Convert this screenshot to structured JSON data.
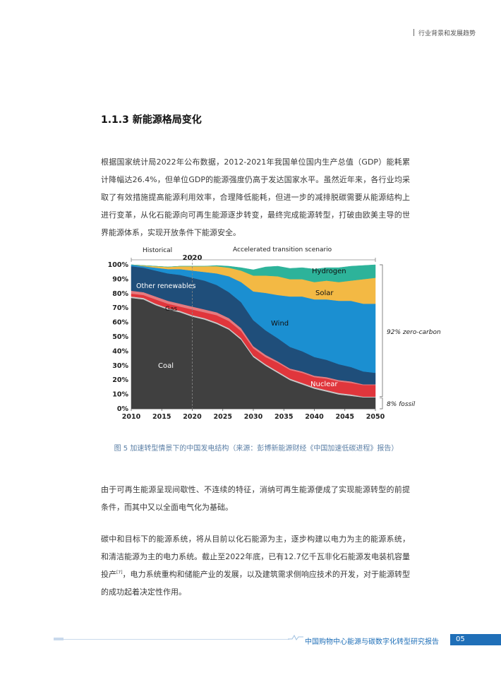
{
  "header": {
    "section_tag": "行业背景和发展趋势"
  },
  "section": {
    "title": "1.1.3  新能源格局变化"
  },
  "paragraphs": {
    "p1": "根据国家统计局2022年公布数据，2012-2021年我国单位国内生产总值（GDP）能耗累计降幅达26.4%，但单位GDP的能源强度仍高于发达国家水平。虽然近年来，各行业均采取了有效措施提高能源利用效率，合理降低能耗，但进一步的减排脱碳需要从能源结构上进行变革，从化石能源向可再生能源逐步转变，最终完成能源转型，打破由欧美主导的世界能源体系，实现开放条件下能源安全。",
    "p2": "由于可再生能源呈现间歇性、不连续的特征，消纳可再生能源便成了实现能源转型的前提条件，而其中又以全面电气化为基础。",
    "p3_before": "碳中和目标下的能源系统，将从目前以化石能源为主，逐步构建以电力为主的能源系统，和清洁能源为主的电力系统。截止至2022年底，已有12.7亿千瓦非化石能源发电装机容量投产",
    "p3_ref": "[7]",
    "p3_after": "，电力系统重构和储能产业的发展，以及建筑需求侧响应技术的开发，对于能源转型的成功起着决定性作用。"
  },
  "figure": {
    "caption": "图 5  加速转型情景下的中国发电结构（来源：彭博新能源财经《中国加速低碳进程》报告）"
  },
  "chart_data": {
    "type": "area",
    "stacked": true,
    "x": [
      2010,
      2012,
      2014,
      2016,
      2018,
      2020,
      2022,
      2024,
      2026,
      2028,
      2030,
      2032,
      2034,
      2036,
      2038,
      2040,
      2042,
      2044,
      2046,
      2048,
      2050
    ],
    "xticks": [
      "2010",
      "2015",
      "2020",
      "2025",
      "2030",
      "2035",
      "2040",
      "2045",
      "2050"
    ],
    "yticks": [
      "0%",
      "10%",
      "20%",
      "30%",
      "40%",
      "50%",
      "60%",
      "70%",
      "80%",
      "90%",
      "100%"
    ],
    "ylim": [
      0,
      100
    ],
    "series": [
      {
        "name": "Coal",
        "color": "#404040",
        "values": [
          77,
          76,
          72,
          69,
          67,
          64,
          62,
          59,
          55,
          48,
          36,
          30,
          25,
          20,
          17,
          14,
          12,
          10,
          9,
          8,
          8
        ]
      },
      {
        "name": "",
        "color": "#c9c9c9",
        "values": [
          1,
          1,
          1,
          1,
          1,
          1,
          1,
          1,
          1,
          1,
          1,
          1,
          1,
          1,
          1,
          1,
          1,
          1,
          1,
          0.5,
          0.5
        ]
      },
      {
        "name": "Nuclear",
        "color": "#e0363c",
        "values": [
          2,
          2,
          3,
          3,
          3,
          4,
          4,
          5,
          5,
          5,
          5,
          5,
          6,
          6,
          7,
          7,
          8,
          8,
          8,
          8,
          8
        ]
      },
      {
        "name": "Gas",
        "color": "#e57a7f",
        "values": [
          2,
          2,
          2,
          2,
          2,
          2,
          2,
          2,
          2,
          2,
          1.5,
          1.5,
          1,
          1,
          1,
          1,
          1,
          1,
          1,
          0.5,
          0.5
        ]
      },
      {
        "name": "Other renewables",
        "color": "#1f4e7a",
        "values": [
          17,
          17,
          18,
          19,
          20,
          20,
          20,
          19,
          18,
          18,
          18,
          17,
          16,
          15,
          14,
          13,
          12,
          11,
          10,
          9,
          8
        ]
      },
      {
        "name": "Wind",
        "color": "#1b8fd1",
        "values": [
          1,
          1,
          2,
          3,
          4,
          5,
          6,
          8,
          11,
          14,
          20,
          26,
          30,
          35,
          38,
          40,
          42,
          44,
          46,
          47,
          48
        ]
      },
      {
        "name": "Solar",
        "color": "#f3b944",
        "values": [
          0,
          0.5,
          1,
          1.5,
          2,
          3,
          4,
          5,
          6,
          8,
          11,
          12,
          13,
          12,
          12,
          12,
          13,
          13,
          14,
          17,
          18
        ]
      },
      {
        "name": "Hydrogen",
        "color": "#2db39a",
        "values": [
          0,
          0,
          0,
          0,
          0,
          0,
          0,
          0.5,
          1,
          2,
          4,
          6,
          7,
          7.5,
          8,
          9,
          9,
          10,
          10,
          9.5,
          9
        ]
      }
    ],
    "annotations": {
      "historical": "Historical",
      "scenario": "Accelerated transition scenario",
      "year_2020": "2020",
      "zero_carbon": "92% zero-carbon",
      "fossil": "8% fossil"
    }
  },
  "footer": {
    "report_title": "中国购物中心能源与碳数字化转型研究报告",
    "page_number": "05"
  }
}
